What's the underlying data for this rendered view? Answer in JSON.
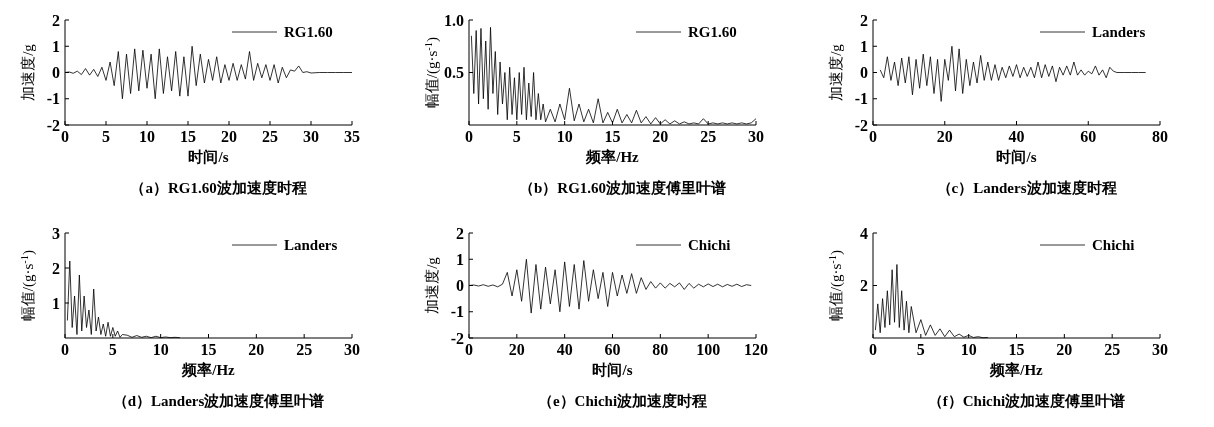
{
  "chart_data": [
    {
      "type": "line",
      "title": "（a）RG1.60波加速度时程",
      "xlabel": "时间/s",
      "ylabel": "加速度/g",
      "xlim": [
        0,
        35
      ],
      "xticks": [
        0,
        5,
        10,
        15,
        20,
        25,
        30,
        35
      ],
      "ylim": [
        -2,
        2
      ],
      "yticks": [
        -2,
        -1,
        0,
        1,
        2
      ],
      "legend": "top right",
      "series": [
        {
          "name": "RG1.60",
          "color": "#000000",
          "x": [
            0,
            0.5,
            1,
            1.5,
            2,
            2.5,
            3,
            3.5,
            4,
            4.5,
            5,
            5.5,
            6,
            6.5,
            7,
            7.5,
            8,
            8.5,
            9,
            9.5,
            10,
            10.5,
            11,
            11.5,
            12,
            12.5,
            13,
            13.5,
            14,
            14.5,
            15,
            15.5,
            16,
            16.5,
            17,
            17.5,
            18,
            18.5,
            19,
            19.5,
            20,
            20.5,
            21,
            21.5,
            22,
            22.5,
            23,
            23.5,
            24,
            24.5,
            25,
            25.5,
            26,
            26.5,
            27,
            27.5,
            28,
            28.5,
            29,
            29.5,
            30,
            31,
            32,
            33,
            34,
            35
          ],
          "values": [
            0,
            0.02,
            -0.03,
            0.05,
            -0.08,
            0.15,
            -0.1,
            0.12,
            -0.15,
            0.2,
            -0.3,
            0.4,
            -0.5,
            0.8,
            -1.0,
            0.7,
            -0.8,
            0.9,
            -0.7,
            0.85,
            -0.6,
            0.7,
            -1.0,
            0.9,
            -0.8,
            0.6,
            -0.7,
            0.8,
            -0.9,
            0.6,
            -0.9,
            1.0,
            -0.5,
            0.7,
            -0.4,
            0.5,
            -0.3,
            0.6,
            -0.4,
            0.3,
            -0.3,
            0.35,
            -0.3,
            0.3,
            -0.25,
            0.8,
            -0.3,
            0.35,
            -0.2,
            0.3,
            -0.3,
            0.3,
            -0.4,
            0.2,
            -0.2,
            0.1,
            0.05,
            0.25,
            0,
            0.03,
            -0.02,
            0,
            0,
            0,
            0,
            0
          ]
        }
      ]
    },
    {
      "type": "line",
      "title": "（b）RG1.60波加速度傅里叶谱",
      "xlabel": "频率/Hz",
      "ylabel": "幅值/(g·s$^{-1}$)",
      "xlim": [
        0,
        30
      ],
      "xticks": [
        0,
        5,
        10,
        15,
        20,
        25,
        30
      ],
      "ylim": [
        0,
        1
      ],
      "yticks": [
        0.5,
        {
          "value": 1,
          "label": "1.0"
        }
      ],
      "legend": "top right",
      "series": [
        {
          "name": "RG1.60",
          "color": "#000000",
          "x": [
            0.25,
            0.5,
            0.75,
            1,
            1.25,
            1.5,
            1.75,
            2,
            2.25,
            2.5,
            2.75,
            3,
            3.25,
            3.5,
            3.75,
            4,
            4.25,
            4.5,
            4.75,
            5,
            5.25,
            5.5,
            5.75,
            6,
            6.25,
            6.5,
            6.75,
            7,
            7.25,
            7.5,
            7.75,
            8,
            8.5,
            9,
            9.5,
            10,
            10.5,
            11,
            11.5,
            12,
            12.5,
            13,
            13.5,
            14,
            14.5,
            15,
            15.5,
            16,
            16.5,
            17,
            17.5,
            18,
            18.5,
            19,
            19.5,
            20,
            20.5,
            21,
            21.5,
            22,
            22.5,
            23,
            23.5,
            24,
            24.5,
            25,
            25.5,
            26,
            26.5,
            27,
            27.5,
            28,
            28.5,
            29,
            29.5,
            30
          ],
          "values": [
            0.85,
            0.3,
            0.9,
            0.2,
            0.92,
            0.25,
            0.8,
            0.15,
            0.93,
            0.3,
            0.7,
            0.1,
            0.6,
            0.2,
            0.5,
            0.05,
            0.55,
            0.1,
            0.45,
            0.05,
            0.5,
            0.1,
            0.55,
            0.05,
            0.4,
            0.08,
            0.5,
            0.05,
            0.3,
            0.05,
            0.2,
            0.03,
            0.15,
            0.03,
            0.2,
            0.05,
            0.35,
            0.04,
            0.2,
            0.03,
            0.15,
            0.02,
            0.25,
            0.02,
            0.12,
            0.02,
            0.15,
            0.02,
            0.1,
            0.02,
            0.14,
            0.02,
            0.08,
            0.01,
            0.07,
            0.01,
            0.05,
            0.01,
            0.04,
            0.01,
            0.03,
            0.01,
            0.02,
            0.01,
            0.06,
            0.01,
            0.02,
            0.01,
            0.02,
            0.01,
            0.02,
            0.01,
            0.02,
            0.01,
            0.02,
            0.06
          ]
        }
      ]
    },
    {
      "type": "line",
      "title": "（c）Landers波加速度时程",
      "xlabel": "时间/s",
      "ylabel": "加速度/g",
      "xlim": [
        0,
        80
      ],
      "xticks": [
        0,
        20,
        40,
        60,
        80
      ],
      "ylim": [
        -2,
        2
      ],
      "yticks": [
        -2,
        -1,
        0,
        1,
        2
      ],
      "legend": "top right",
      "series": [
        {
          "name": "Landers",
          "color": "#000000",
          "x": [
            2,
            3,
            4,
            5,
            6,
            7,
            8,
            9,
            10,
            11,
            12,
            13,
            14,
            15,
            16,
            17,
            18,
            19,
            20,
            21,
            22,
            23,
            24,
            25,
            26,
            27,
            28,
            29,
            30,
            31,
            32,
            33,
            34,
            35,
            36,
            37,
            38,
            39,
            40,
            41,
            42,
            43,
            44,
            45,
            46,
            47,
            48,
            49,
            50,
            51,
            52,
            53,
            54,
            55,
            56,
            57,
            58,
            59,
            60,
            61,
            62,
            63,
            64,
            65,
            66,
            67,
            68,
            70,
            72,
            74,
            76
          ],
          "values": [
            0.1,
            -0.2,
            0.6,
            -0.3,
            0.4,
            -0.5,
            0.55,
            -0.4,
            0.6,
            -0.85,
            0.5,
            -0.6,
            0.7,
            -0.5,
            0.6,
            -0.8,
            0.5,
            -1.1,
            0.5,
            -0.3,
            1.0,
            -0.7,
            0.9,
            -0.8,
            0.5,
            -0.5,
            0.4,
            -0.4,
            0.65,
            -0.3,
            0.4,
            -0.3,
            0.3,
            -0.3,
            0.2,
            -0.2,
            0.25,
            -0.15,
            0.3,
            -0.2,
            0.2,
            -0.15,
            0.2,
            -0.2,
            0.4,
            -0.2,
            0.3,
            -0.15,
            0.25,
            -0.35,
            0.2,
            -0.1,
            0.25,
            -0.1,
            0.4,
            -0.1,
            0.1,
            -0.1,
            0.05,
            -0.05,
            0.25,
            -0.1,
            0.1,
            -0.2,
            0.2,
            0.05,
            0,
            0,
            0,
            0,
            0
          ]
        }
      ]
    },
    {
      "type": "line",
      "title": "（d）Landers波加速度傅里叶谱",
      "xlabel": "频率/Hz",
      "ylabel": "幅值/(g·s$^{-1}$)",
      "xlim": [
        0,
        30
      ],
      "xticks": [
        0,
        5,
        10,
        15,
        20,
        25,
        30
      ],
      "ylim": [
        0,
        3
      ],
      "yticks": [
        1,
        2,
        3
      ],
      "legend": "top right",
      "series": [
        {
          "name": "Landers",
          "color": "#000000",
          "x": [
            0.25,
            0.5,
            0.75,
            1,
            1.25,
            1.5,
            1.75,
            2,
            2.25,
            2.5,
            2.75,
            3,
            3.25,
            3.5,
            3.75,
            4,
            4.25,
            4.5,
            4.75,
            5,
            5.25,
            5.5,
            5.75,
            6,
            6.5,
            7,
            7.5,
            8,
            8.5,
            9,
            9.5,
            10,
            10.5,
            11,
            11.5,
            12
          ],
          "values": [
            0.5,
            2.2,
            0.3,
            1.2,
            0.1,
            1.8,
            0.2,
            1.2,
            0.3,
            0.8,
            0.1,
            1.4,
            0.2,
            0.6,
            0.1,
            0.4,
            0.05,
            0.45,
            0.05,
            0.3,
            0.05,
            0.2,
            0.02,
            0.1,
            0.08,
            0.02,
            0.07,
            0.02,
            0.05,
            0.01,
            0.05,
            0.01,
            0.03,
            0.01,
            0.02,
            0.01
          ]
        }
      ]
    },
    {
      "type": "line",
      "title": "（e）Chichi波加速度时程",
      "xlabel": "时间/s",
      "ylabel": "加速度/g",
      "xlim": [
        0,
        120
      ],
      "xticks": [
        0,
        20,
        40,
        60,
        80,
        100,
        120
      ],
      "ylim": [
        -2,
        2
      ],
      "yticks": [
        -2,
        -1,
        0,
        1,
        2
      ],
      "legend": "top right",
      "series": [
        {
          "name": "Chichi",
          "color": "#000000",
          "x": [
            0,
            2,
            4,
            6,
            8,
            10,
            12,
            14,
            16,
            18,
            20,
            22,
            24,
            26,
            28,
            30,
            32,
            34,
            36,
            38,
            40,
            42,
            44,
            46,
            48,
            50,
            52,
            54,
            56,
            58,
            60,
            62,
            64,
            66,
            68,
            70,
            72,
            74,
            76,
            78,
            80,
            82,
            84,
            86,
            88,
            90,
            92,
            94,
            96,
            98,
            100,
            102,
            104,
            106,
            108,
            110,
            112,
            114,
            116,
            118
          ],
          "values": [
            0,
            0.02,
            -0.02,
            0.03,
            -0.03,
            0.02,
            -0.05,
            0.05,
            0.5,
            -0.4,
            0.6,
            -0.6,
            1.0,
            -1.05,
            0.8,
            -0.9,
            0.7,
            -0.7,
            0.6,
            -1.0,
            0.9,
            -0.8,
            0.8,
            -0.9,
            0.95,
            -0.6,
            0.6,
            -0.5,
            0.5,
            -0.8,
            0.5,
            -0.4,
            0.4,
            -0.3,
            0.45,
            -0.3,
            0.3,
            -0.15,
            0.15,
            -0.1,
            0.1,
            -0.1,
            0.08,
            -0.05,
            0.1,
            -0.15,
            0.08,
            -0.1,
            0.05,
            -0.05,
            0.06,
            -0.04,
            0.05,
            -0.05,
            0.04,
            -0.03,
            0.05,
            -0.04,
            0.03,
            0
          ]
        }
      ]
    },
    {
      "type": "line",
      "title": "（f）Chichi波加速度傅里叶谱",
      "xlabel": "频率/Hz",
      "ylabel": "幅值/(g·s$^{-1}$)",
      "xlim": [
        0,
        30
      ],
      "xticks": [
        0,
        5,
        10,
        15,
        20,
        25,
        30
      ],
      "ylim": [
        0,
        4
      ],
      "yticks": [
        2,
        4
      ],
      "legend": "top right",
      "series": [
        {
          "name": "Chichi",
          "color": "#000000",
          "x": [
            0.25,
            0.5,
            0.75,
            1,
            1.25,
            1.5,
            1.75,
            2,
            2.25,
            2.5,
            2.75,
            3,
            3.25,
            3.5,
            3.75,
            4,
            4.5,
            5,
            5.5,
            6,
            6.5,
            7,
            7.5,
            8,
            8.5,
            9,
            9.5,
            10,
            10.5,
            11,
            11.5,
            12
          ],
          "values": [
            0.3,
            1.3,
            0.2,
            1.5,
            0.4,
            1.8,
            0.5,
            2.6,
            0.6,
            2.8,
            0.4,
            1.8,
            0.3,
            1.4,
            0.2,
            1.2,
            0.2,
            0.7,
            0.1,
            0.5,
            0.1,
            0.35,
            0.05,
            0.3,
            0.05,
            0.15,
            0.03,
            0.1,
            0.02,
            0.05,
            0.01,
            0.02
          ]
        }
      ]
    }
  ]
}
